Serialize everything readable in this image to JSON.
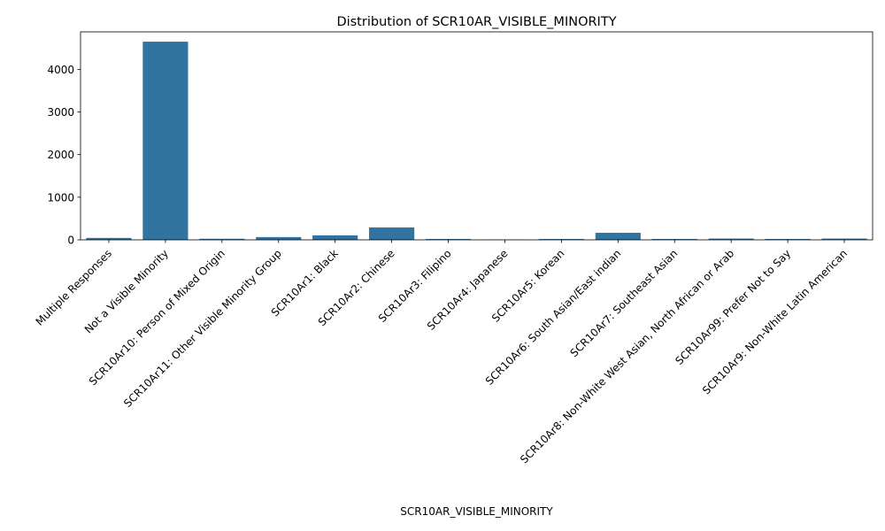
{
  "chart_data": {
    "type": "bar",
    "title": "Distribution of SCR10AR_VISIBLE_MINORITY",
    "xlabel": "SCR10AR_VISIBLE_MINORITY",
    "ylabel": "",
    "ylim": [
      0,
      4880
    ],
    "yticks": [
      0,
      1000,
      2000,
      3000,
      4000
    ],
    "bar_color": "#3274a1",
    "grid": false,
    "categories": [
      "Multiple Responses",
      "Not a Visible Minority",
      "SCR10Ar10: Person of Mixed Origin",
      "SCR10Ar11: Other Visible Minority Group",
      "SCR10Ar1: Black",
      "SCR10Ar2: Chinese",
      "SCR10Ar3: Filipino",
      "SCR10Ar4: Japanese",
      "SCR10Ar5: Korean",
      "SCR10Ar6: South Asian/East indian",
      "SCR10Ar7: Southeast Asian",
      "SCR10Ar8: Non-White West Asian, North African or Arab",
      "SCR10Ar99: Prefer Not to Say",
      "SCR10Ar9: Non-White Latin American"
    ],
    "values": [
      45,
      4650,
      25,
      65,
      105,
      290,
      20,
      5,
      20,
      165,
      20,
      30,
      20,
      30
    ]
  }
}
